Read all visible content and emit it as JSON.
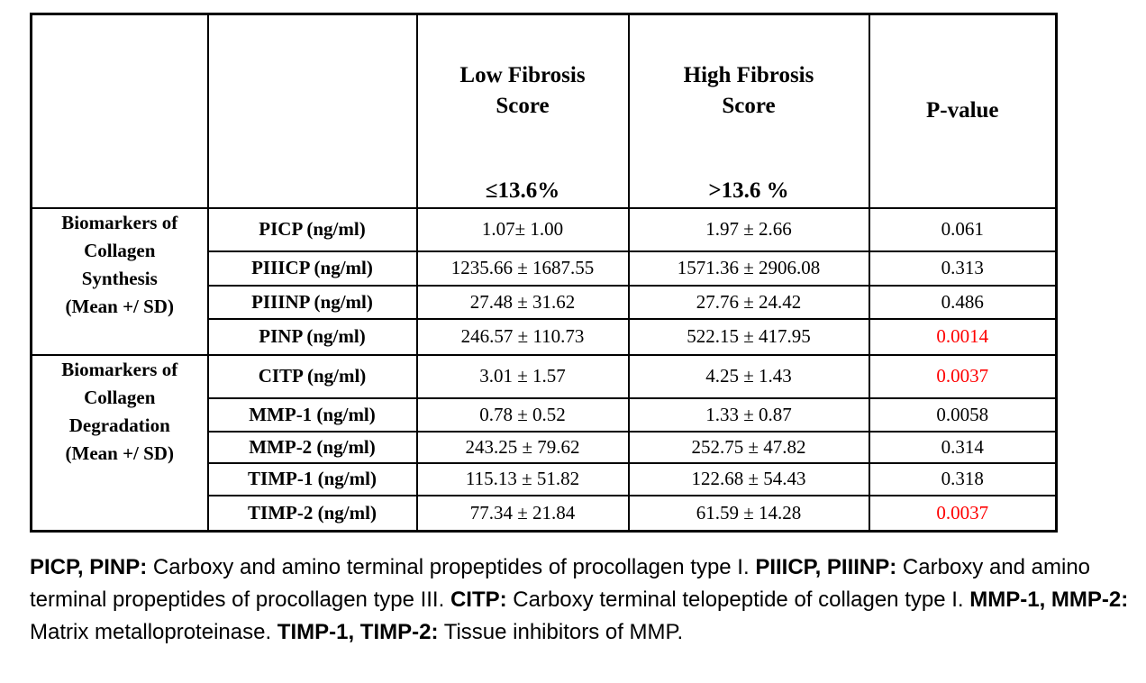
{
  "colors": {
    "background": "#FFFFFF",
    "border": "#000000",
    "text": "#000000",
    "p_significant": "#FF0000"
  },
  "table": {
    "header": {
      "low": {
        "title_lines": [
          "Low Fibrosis",
          "Score"
        ],
        "threshold": "≤13.6%"
      },
      "high": {
        "title_lines": [
          "High Fibrosis",
          "Score"
        ],
        "threshold": ">13.6 %"
      },
      "pvalue": "P-value"
    },
    "groups": [
      {
        "label_lines": [
          "Biomarkers of",
          "Collagen",
          "Synthesis",
          "(Mean +/ SD)"
        ],
        "rows": [
          {
            "biomarker": "PICP (ng/ml)",
            "low": "1.07± 1.00",
            "high": "1.97 ± 2.66",
            "p": "0.061",
            "p_red": false
          },
          {
            "biomarker": "PIIICP (ng/ml)",
            "low": "1235.66 ± 1687.55",
            "high": "1571.36 ± 2906.08",
            "p": "0.313",
            "p_red": false
          },
          {
            "biomarker": "PIIINP (ng/ml)",
            "low": "27.48 ± 31.62",
            "high": "27.76 ± 24.42",
            "p": "0.486",
            "p_red": false
          },
          {
            "biomarker": "PINP (ng/ml)",
            "low": "246.57 ± 110.73",
            "high": "522.15 ± 417.95",
            "p": "0.0014",
            "p_red": true
          }
        ]
      },
      {
        "label_lines": [
          "Biomarkers of",
          "Collagen",
          "Degradation",
          "(Mean +/ SD)"
        ],
        "rows": [
          {
            "biomarker": "CITP (ng/ml)",
            "low": "3.01 ± 1.57",
            "high": "4.25 ± 1.43",
            "p": "0.0037",
            "p_red": true
          },
          {
            "biomarker": "MMP-1 (ng/ml)",
            "low": "0.78 ± 0.52",
            "high": "1.33 ± 0.87",
            "p": "0.0058",
            "p_red": false
          },
          {
            "biomarker": "MMP-2 (ng/ml)",
            "low": "243.25 ± 79.62",
            "high": "252.75 ± 47.82",
            "p": "0.314",
            "p_red": false
          },
          {
            "biomarker": "TIMP-1 (ng/ml)",
            "low": "115.13 ± 51.82",
            "high": "122.68 ± 54.43",
            "p": "0.318",
            "p_red": false
          },
          {
            "biomarker": "TIMP-2 (ng/ml)",
            "low": "77.34 ± 21.84",
            "high": "61.59 ± 14.28",
            "p": "0.0037",
            "p_red": true
          }
        ]
      }
    ]
  },
  "footnote": {
    "segments": [
      {
        "text": "PICP, PINP:",
        "bold": true
      },
      {
        "text": " Carboxy and amino terminal propeptides of procollagen type I. ",
        "bold": false
      },
      {
        "text": "PIIICP, PIIINP:",
        "bold": true
      },
      {
        "text": " Carboxy and amino terminal propeptides of procollagen type III. ",
        "bold": false
      },
      {
        "text": "CITP:",
        "bold": true
      },
      {
        "text": " Carboxy terminal telopeptide of collagen type I. ",
        "bold": false
      },
      {
        "text": "MMP-1, MMP-2:",
        "bold": true
      },
      {
        "text": " Matrix metalloproteinase. ",
        "bold": false
      },
      {
        "text": "TIMP-1, TIMP-2:",
        "bold": true
      },
      {
        "text": " Tissue inhibitors of MMP.",
        "bold": false
      }
    ]
  }
}
